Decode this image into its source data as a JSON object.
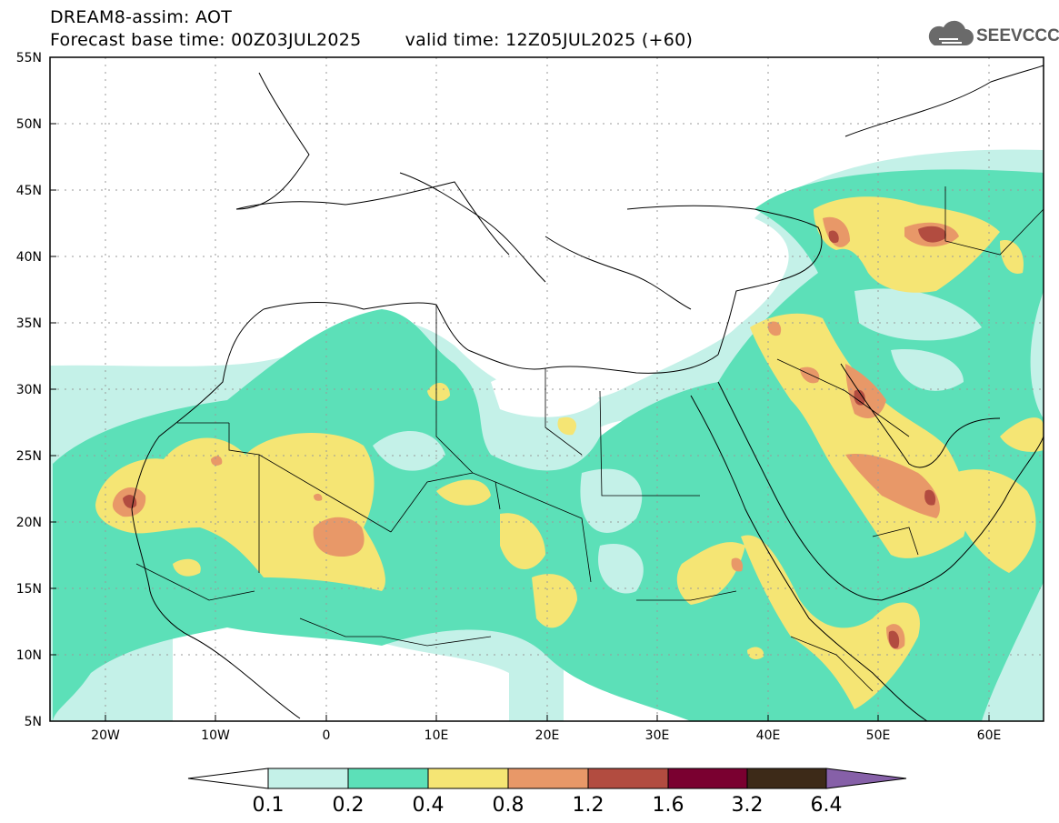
{
  "header": {
    "title": "DREAM8-assim: AOT",
    "base_time": "Forecast base time: 00Z03JUL2025",
    "valid_time": "valid time: 12Z05JUL2025 (+60)",
    "logo_text": "SEEVCCC"
  },
  "map": {
    "projection": "lat-lon",
    "lon_range": [
      -25,
      65
    ],
    "lat_range": [
      5,
      55
    ],
    "lat_labels": [
      "55N",
      "50N",
      "45N",
      "40N",
      "35N",
      "30N",
      "25N",
      "20N",
      "15N",
      "10N",
      "5N"
    ],
    "lon_labels": [
      "20W",
      "10W",
      "0",
      "10E",
      "20E",
      "30E",
      "40E",
      "50E",
      "60E"
    ],
    "grid": true,
    "gridline_style": "dotted"
  },
  "colorbar": {
    "labels": [
      "0.1",
      "0.2",
      "0.4",
      "0.8",
      "1.2",
      "1.6",
      "3.2",
      "6.4"
    ],
    "colors": [
      "#ffffff",
      "#c4f1e8",
      "#5ce0b8",
      "#f5e574",
      "#e89868",
      "#b24c40",
      "#7a0030",
      "#3d2a18",
      "#8660a8"
    ]
  }
}
